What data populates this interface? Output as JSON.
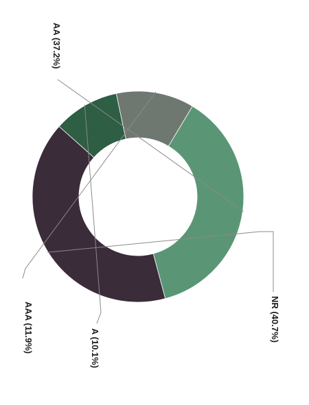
{
  "chart_data": {
    "type": "pie",
    "variant": "donut",
    "orientation": "rotated 90 degrees clockwise",
    "slices": [
      {
        "label": "AA (37.2%)",
        "value": 37.2,
        "color": "#5a9676"
      },
      {
        "label": "NR (40.7%)",
        "value": 40.7,
        "color": "#3b2c3a"
      },
      {
        "label": "A (10.1%)",
        "value": 10.1,
        "color": "#2e5e44"
      },
      {
        "label": "AAA (11.9%)",
        "value": 11.9,
        "color": "#6f7771"
      }
    ]
  }
}
